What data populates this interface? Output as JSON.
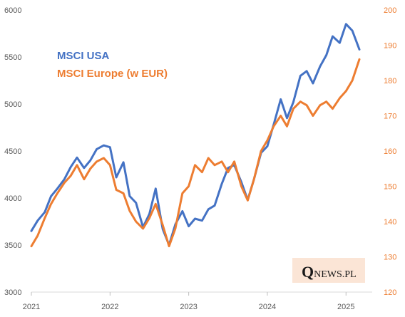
{
  "chart_data": {
    "type": "line",
    "x_axis": {
      "ticks": [
        "2021",
        "2022",
        "2023",
        "2024",
        "2025"
      ],
      "range": [
        "2021-01",
        "2025-04"
      ]
    },
    "y_left": {
      "ticks": [
        "3000",
        "3500",
        "4000",
        "4500",
        "5000",
        "5500",
        "6000"
      ],
      "range": [
        3000,
        6000
      ]
    },
    "y_right": {
      "ticks": [
        "120",
        "130",
        "140",
        "150",
        "160",
        "170",
        "180",
        "190",
        "200"
      ],
      "range": [
        120,
        200
      ]
    },
    "legend_placement": "top-left",
    "grid": false,
    "series": [
      {
        "name": "MSCI USA",
        "axis": "left",
        "color": "#4472C4",
        "x": [
          2021.0,
          2021.08,
          2021.17,
          2021.25,
          2021.33,
          2021.42,
          2021.5,
          2021.58,
          2021.67,
          2021.75,
          2021.83,
          2021.92,
          2022.0,
          2022.08,
          2022.17,
          2022.25,
          2022.33,
          2022.42,
          2022.5,
          2022.58,
          2022.67,
          2022.75,
          2022.83,
          2022.92,
          2023.0,
          2023.08,
          2023.17,
          2023.25,
          2023.33,
          2023.42,
          2023.5,
          2023.58,
          2023.67,
          2023.75,
          2023.83,
          2023.92,
          2024.0,
          2024.08,
          2024.17,
          2024.25,
          2024.33,
          2024.42,
          2024.5,
          2024.58,
          2024.67,
          2024.75,
          2024.83,
          2024.92,
          2025.0,
          2025.08,
          2025.17
        ],
        "y": [
          3650,
          3760,
          3850,
          4020,
          4100,
          4200,
          4330,
          4430,
          4320,
          4400,
          4520,
          4560,
          4540,
          4220,
          4380,
          4020,
          3950,
          3690,
          3830,
          4100,
          3670,
          3500,
          3720,
          3860,
          3700,
          3780,
          3760,
          3880,
          3920,
          4150,
          4320,
          4350,
          4170,
          3980,
          4200,
          4480,
          4550,
          4780,
          5050,
          4850,
          5020,
          5300,
          5350,
          5220,
          5400,
          5520,
          5720,
          5650,
          5850,
          5780,
          5580
        ]
      },
      {
        "name": "MSCI Europe (w EUR)",
        "axis": "right",
        "color": "#ED7D31",
        "x": [
          2021.0,
          2021.08,
          2021.17,
          2021.25,
          2021.33,
          2021.42,
          2021.5,
          2021.58,
          2021.67,
          2021.75,
          2021.83,
          2021.92,
          2022.0,
          2022.08,
          2022.17,
          2022.25,
          2022.33,
          2022.42,
          2022.5,
          2022.58,
          2022.67,
          2022.75,
          2022.83,
          2022.92,
          2023.0,
          2023.08,
          2023.17,
          2023.25,
          2023.33,
          2023.42,
          2023.5,
          2023.58,
          2023.67,
          2023.75,
          2023.83,
          2023.92,
          2024.0,
          2024.08,
          2024.17,
          2024.25,
          2024.33,
          2024.42,
          2024.5,
          2024.58,
          2024.67,
          2024.75,
          2024.83,
          2024.92,
          2025.0,
          2025.08,
          2025.17
        ],
        "y": [
          133,
          136,
          141,
          145,
          148,
          151,
          153,
          156,
          152,
          155,
          157,
          158,
          156,
          149,
          148,
          143,
          140,
          138,
          141,
          145,
          139,
          133,
          138,
          148,
          150,
          156,
          154,
          158,
          156,
          157,
          154,
          157,
          150,
          146,
          152,
          160,
          163,
          167,
          170,
          167,
          172,
          174,
          173,
          170,
          173,
          174,
          172,
          175,
          177,
          180,
          186
        ]
      }
    ]
  },
  "watermark": {
    "q": "Q",
    "rest": "NEWS.PL"
  }
}
